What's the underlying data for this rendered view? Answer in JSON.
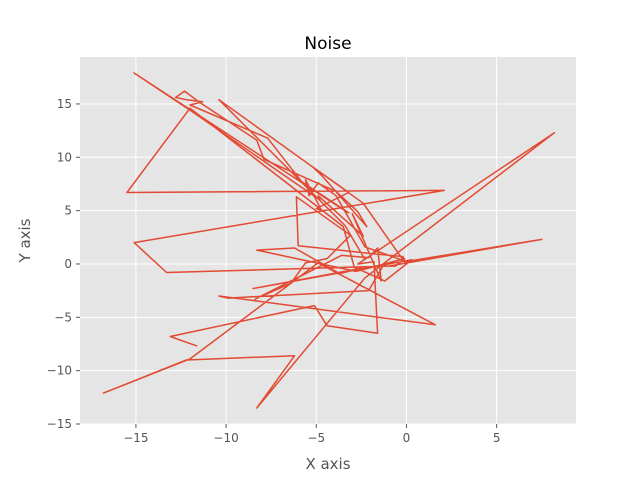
{
  "chart_data": {
    "type": "line",
    "title": "Noise",
    "xlabel": "X axis",
    "ylabel": "Y axis",
    "xlim": [
      -18.1,
      9.4
    ],
    "ylim": [
      -15,
      19.4
    ],
    "xticks": [
      -15,
      -10,
      -5,
      0,
      5
    ],
    "xtick_labels": [
      "−15",
      "−10",
      "−5",
      "0",
      "5"
    ],
    "yticks": [
      -15,
      -10,
      -5,
      0,
      5,
      10,
      15
    ],
    "ytick_labels": [
      "−15",
      "−10",
      "−5",
      "0",
      "5",
      "10",
      "15"
    ],
    "grid": true,
    "style": "ggplot",
    "background_color": "#E5E5E5",
    "grid_color": "#FFFFFF",
    "line_color": "#E24A33",
    "series": [
      {
        "x": [
          -2.3,
          -3.4,
          -10.4,
          -2.4,
          -0.2,
          -0.3,
          -2.3,
          -3.9,
          -4.9,
          -5.4,
          -5.6,
          -4.7,
          -5.0,
          -3.2,
          -5.2,
          -4.7,
          -2.2,
          -2.7,
          -3.9,
          -7.9,
          -8.3,
          -11.6,
          -12.3,
          -12.8,
          -12.2,
          -11.3,
          -12.0,
          -7.7,
          -5.8,
          -3.2,
          -3.6,
          -15.1,
          -11.9,
          -4.8,
          -4.9,
          -2.4,
          -3.0,
          -1.4,
          -1.6,
          -2.1,
          -3.6,
          -8.4,
          -6.4,
          -5.6,
          -4.4,
          -3.1,
          -6.1,
          -6.0,
          -1.5,
          -0.2,
          -0.1,
          7.5,
          -1.0,
          -13.3,
          -15.1,
          2.1,
          -15.5,
          -12.0,
          -3.5,
          -2.9,
          -1.2,
          0.3,
          -1.3,
          -8.5,
          -2.5,
          -3.7,
          -6.2,
          -8.3,
          -2.8,
          -0.1,
          -0.6,
          -1.3,
          -2.1,
          -9.9,
          -10.4,
          1.6,
          -4.9,
          -12.0,
          -16.8,
          -12.2,
          -6.2,
          -8.3,
          -2.3,
          8.2,
          -2.7,
          -1.8,
          -1.6,
          -4.4,
          -5.1,
          -13.1,
          -11.6
        ],
        "y": [
          0.4,
          3.6,
          15.4,
          5.7,
          0.4,
          0.4,
          1.6,
          6.4,
          7.6,
          6.4,
          7.9,
          5.0,
          5.2,
          6.7,
          9.1,
          8.3,
          3.5,
          4.9,
          6.8,
          9.8,
          11.6,
          15.3,
          16.2,
          15.6,
          15.4,
          15.2,
          14.9,
          11.8,
          7.7,
          4.8,
          5.2,
          17.9,
          14.3,
          6.0,
          6.4,
          2.6,
          4.7,
          -1.6,
          1.5,
          0.6,
          0.8,
          -3.3,
          -1.8,
          0.1,
          0.5,
          2.7,
          6.3,
          1.7,
          0.9,
          0.7,
          0.2,
          2.3,
          -0.2,
          -0.8,
          2.0,
          6.9,
          6.7,
          14.6,
          3.5,
          -0.3,
          -1.6,
          0.4,
          -0.1,
          -2.3,
          -0.4,
          -0.9,
          1.5,
          1.3,
          -0.7,
          0.5,
          -0.2,
          -0.2,
          -2.5,
          -3.2,
          -3.0,
          -5.7,
          0.1,
          -8.9,
          -12.1,
          -9.0,
          -8.6,
          -13.5,
          -1.3,
          12.3,
          0.0,
          0.2,
          -6.5,
          -5.8,
          -3.9,
          -6.8,
          -7.7
        ]
      }
    ]
  }
}
